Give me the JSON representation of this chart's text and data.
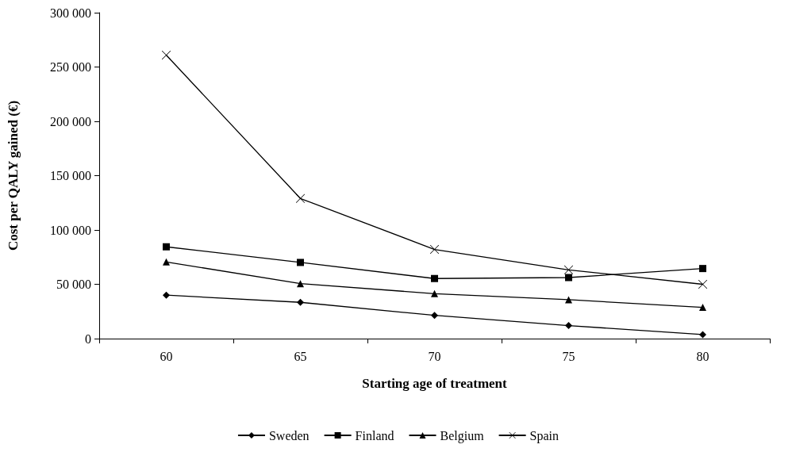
{
  "chart_data": {
    "type": "line",
    "xlabel": "Starting age of treatment",
    "ylabel": "Cost per QALY gained (€)",
    "categories": [
      "60",
      "65",
      "70",
      "75",
      "80"
    ],
    "ylim": [
      0,
      300000
    ],
    "yticks": [
      {
        "value": 0,
        "label": "0"
      },
      {
        "value": 50000,
        "label": "50 000"
      },
      {
        "value": 100000,
        "label": "100 000"
      },
      {
        "value": 150000,
        "label": "150 000"
      },
      {
        "value": 200000,
        "label": "200 000"
      },
      {
        "value": 250000,
        "label": "250 000"
      },
      {
        "value": 300000,
        "label": "300 000"
      }
    ],
    "grid": false,
    "legend": "bottom",
    "line_style": "solid",
    "series": [
      {
        "name": "Sweden",
        "color": "#000000",
        "marker": "diamond",
        "values": [
          40000,
          33400,
          21400,
          12000,
          3700
        ]
      },
      {
        "name": "Finland",
        "color": "#000000",
        "marker": "square",
        "values": [
          84500,
          70100,
          55300,
          56200,
          64500
        ]
      },
      {
        "name": "Belgium",
        "color": "#000000",
        "marker": "triangle",
        "values": [
          70600,
          50600,
          41400,
          35800,
          28800
        ]
      },
      {
        "name": "Spain",
        "color": "#000000",
        "marker": "cross",
        "values": [
          260900,
          129000,
          82100,
          63300,
          50000
        ]
      }
    ]
  }
}
